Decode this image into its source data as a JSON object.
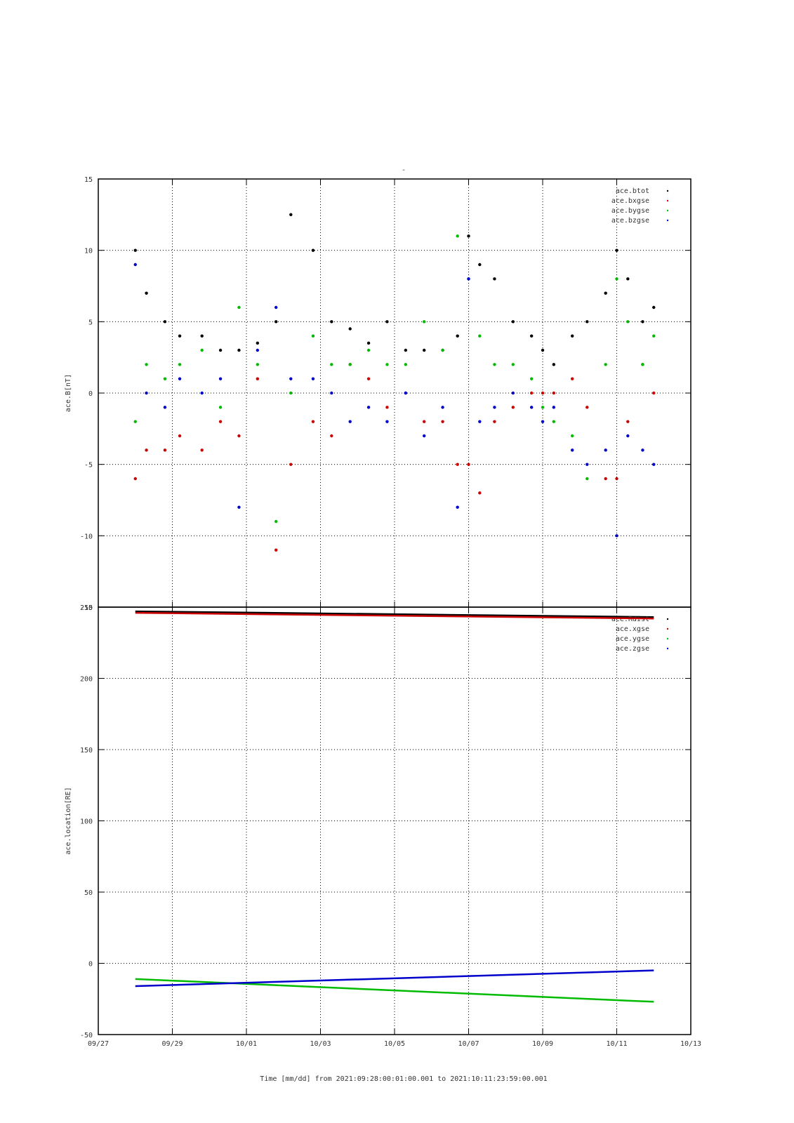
{
  "title": "-",
  "xlabel": "Time [mm/dd]  from 2021:09:28:00:01:00.001  to  2021:10:11:23:59:00.001",
  "chart_data": [
    {
      "type": "scatter",
      "ylabel": "ace.B[nT]",
      "ylim": [
        -15,
        15
      ],
      "yticks": [
        15,
        10,
        5,
        0,
        -5,
        -10,
        -15
      ],
      "xlim": [
        "09/27",
        "10/13"
      ],
      "xticks": [
        "09/27",
        "09/29",
        "10/01",
        "10/03",
        "10/05",
        "10/07",
        "10/09",
        "10/11",
        "10/13"
      ],
      "grid": true,
      "legend_position": "top-right",
      "series": [
        {
          "name": "ace.btot",
          "color": "#000000",
          "x": [
            "09/28",
            "09/28.3",
            "09/28.8",
            "09/29.2",
            "09/29.8",
            "09/30.3",
            "09/30.8",
            "10/01.3",
            "10/01.8",
            "10/02.2",
            "10/02.8",
            "10/03.3",
            "10/03.8",
            "10/04.3",
            "10/04.8",
            "10/05.3",
            "10/05.8",
            "10/06.3",
            "10/06.7",
            "10/07.0",
            "10/07.3",
            "10/07.7",
            "10/08.2",
            "10/08.7",
            "10/09.0",
            "10/09.3",
            "10/09.8",
            "10/10.2",
            "10/10.7",
            "10/11.0",
            "10/11.3",
            "10/11.7",
            "10/12"
          ],
          "y": [
            10,
            7,
            5,
            4,
            4,
            3,
            3,
            3.5,
            5,
            12.5,
            10,
            5,
            4.5,
            3.5,
            5,
            3,
            3,
            3,
            4,
            11,
            9,
            8,
            5,
            4,
            3,
            2,
            4,
            5,
            7,
            10,
            8,
            5,
            6
          ]
        },
        {
          "name": "ace.bxgse",
          "color": "#cc0000",
          "x": [
            "09/28",
            "09/28.3",
            "09/28.8",
            "09/29.2",
            "09/29.8",
            "09/30.3",
            "09/30.8",
            "10/01.3",
            "10/01.8",
            "10/02.2",
            "10/02.8",
            "10/03.3",
            "10/03.8",
            "10/04.3",
            "10/04.8",
            "10/05.3",
            "10/05.8",
            "10/06.3",
            "10/06.7",
            "10/07.0",
            "10/07.3",
            "10/07.7",
            "10/08.2",
            "10/08.7",
            "10/09.0",
            "10/09.3",
            "10/09.8",
            "10/10.2",
            "10/10.7",
            "10/11.0",
            "10/11.3",
            "10/11.7",
            "10/12"
          ],
          "y": [
            -6,
            -4,
            -4,
            -3,
            -4,
            -2,
            -3,
            1,
            -11,
            -5,
            -2,
            -3,
            2,
            1,
            -1,
            0,
            -2,
            -2,
            -5,
            -5,
            -7,
            -2,
            -1,
            0,
            0,
            0,
            1,
            -1,
            -6,
            -6,
            -2,
            2,
            0
          ]
        },
        {
          "name": "ace.bygse",
          "color": "#00bb00",
          "x": [
            "09/28",
            "09/28.3",
            "09/28.8",
            "09/29.2",
            "09/29.8",
            "09/30.3",
            "09/30.8",
            "10/01.3",
            "10/01.8",
            "10/02.2",
            "10/02.8",
            "10/03.3",
            "10/03.8",
            "10/04.3",
            "10/04.8",
            "10/05.3",
            "10/05.8",
            "10/06.3",
            "10/06.7",
            "10/07.0",
            "10/07.3",
            "10/07.7",
            "10/08.2",
            "10/08.7",
            "10/09.0",
            "10/09.3",
            "10/09.8",
            "10/10.2",
            "10/10.7",
            "10/11.0",
            "10/11.3",
            "10/11.7",
            "10/12"
          ],
          "y": [
            -2,
            2,
            1,
            2,
            3,
            -1,
            6,
            2,
            -9,
            0,
            4,
            2,
            2,
            3,
            2,
            2,
            5,
            3,
            11,
            8,
            4,
            2,
            2,
            1,
            -1,
            -2,
            -3,
            -6,
            2,
            8,
            5,
            2,
            4
          ]
        },
        {
          "name": "ace.bzgse",
          "color": "#0000cc",
          "x": [
            "09/28",
            "09/28.3",
            "09/28.8",
            "09/29.2",
            "09/29.8",
            "09/30.3",
            "09/30.8",
            "10/01.3",
            "10/01.8",
            "10/02.2",
            "10/02.8",
            "10/03.3",
            "10/03.8",
            "10/04.3",
            "10/04.8",
            "10/05.3",
            "10/05.8",
            "10/06.3",
            "10/06.7",
            "10/07.0",
            "10/07.3",
            "10/07.7",
            "10/08.2",
            "10/08.7",
            "10/09.0",
            "10/09.3",
            "10/09.8",
            "10/10.2",
            "10/10.7",
            "10/11.0",
            "10/11.3",
            "10/11.7",
            "10/12"
          ],
          "y": [
            9,
            0,
            -1,
            1,
            0,
            1,
            -8,
            3,
            6,
            1,
            1,
            0,
            -2,
            -1,
            -2,
            0,
            -3,
            -1,
            -8,
            8,
            -2,
            -1,
            0,
            -1,
            -2,
            -1,
            -4,
            -5,
            -4,
            -10,
            -3,
            -4,
            -5
          ]
        }
      ]
    },
    {
      "type": "line",
      "ylabel": "ace.location[RE]",
      "ylim": [
        -50,
        250
      ],
      "yticks": [
        250,
        200,
        150,
        100,
        50,
        0,
        -50
      ],
      "xlim": [
        "09/27",
        "10/13"
      ],
      "xticks": [
        "09/27",
        "09/29",
        "10/01",
        "10/03",
        "10/05",
        "10/07",
        "10/09",
        "10/11",
        "10/13"
      ],
      "grid": true,
      "legend_position": "top-right",
      "series": [
        {
          "name": "ace.Rdist",
          "color": "#000000",
          "x": [
            "09/28",
            "10/12"
          ],
          "y": [
            247,
            243
          ]
        },
        {
          "name": "ace.xgse",
          "color": "#cc0000",
          "x": [
            "09/28",
            "10/12"
          ],
          "y": [
            246,
            242
          ]
        },
        {
          "name": "ace.ygse",
          "color": "#00bb00",
          "x": [
            "09/28",
            "10/12"
          ],
          "y": [
            -11,
            -27
          ]
        },
        {
          "name": "ace.zgse",
          "color": "#0000cc",
          "x": [
            "09/28",
            "10/12"
          ],
          "y": [
            -16,
            -5
          ]
        }
      ]
    }
  ]
}
